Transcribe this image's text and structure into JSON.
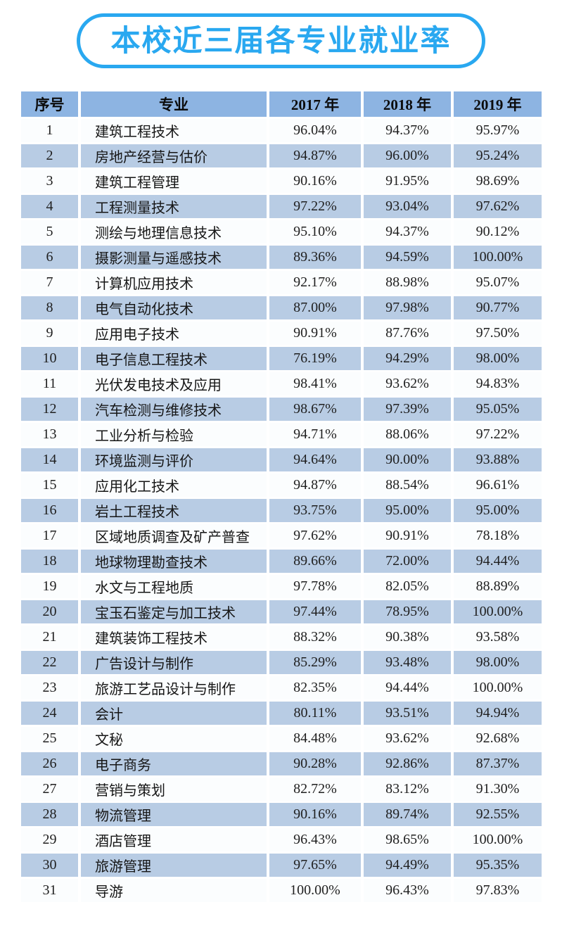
{
  "title": "本校近三届各专业就业率",
  "colors": {
    "accent": "#29A8F0",
    "header_bg": "#8DB4E2",
    "band_bg": "#B8CCE4",
    "row_bg": "#FBFDFE"
  },
  "chart_data": {
    "type": "table",
    "title": "本校近三届各专业就业率",
    "columns": [
      "序号",
      "专业",
      "2017 年",
      "2018 年",
      "2019 年"
    ],
    "rows": [
      [
        "1",
        "建筑工程技术",
        "96.04%",
        "94.37%",
        "95.97%"
      ],
      [
        "2",
        "房地产经营与估价",
        "94.87%",
        "96.00%",
        "95.24%"
      ],
      [
        "3",
        "建筑工程管理",
        "90.16%",
        "91.95%",
        "98.69%"
      ],
      [
        "4",
        "工程测量技术",
        "97.22%",
        "93.04%",
        "97.62%"
      ],
      [
        "5",
        "测绘与地理信息技术",
        "95.10%",
        "94.37%",
        "90.12%"
      ],
      [
        "6",
        "摄影测量与遥感技术",
        "89.36%",
        "94.59%",
        "100.00%"
      ],
      [
        "7",
        "计算机应用技术",
        "92.17%",
        "88.98%",
        "95.07%"
      ],
      [
        "8",
        "电气自动化技术",
        "87.00%",
        "97.98%",
        "90.77%"
      ],
      [
        "9",
        "应用电子技术",
        "90.91%",
        "87.76%",
        "97.50%"
      ],
      [
        "10",
        "电子信息工程技术",
        "76.19%",
        "94.29%",
        "98.00%"
      ],
      [
        "11",
        "光伏发电技术及应用",
        "98.41%",
        "93.62%",
        "94.83%"
      ],
      [
        "12",
        "汽车检测与维修技术",
        "98.67%",
        "97.39%",
        "95.05%"
      ],
      [
        "13",
        "工业分析与检验",
        "94.71%",
        "88.06%",
        "97.22%"
      ],
      [
        "14",
        "环境监测与评价",
        "94.64%",
        "90.00%",
        "93.88%"
      ],
      [
        "15",
        "应用化工技术",
        "94.87%",
        "88.54%",
        "96.61%"
      ],
      [
        "16",
        "岩土工程技术",
        "93.75%",
        "95.00%",
        "95.00%"
      ],
      [
        "17",
        "区域地质调查及矿产普查",
        "97.62%",
        "90.91%",
        "78.18%"
      ],
      [
        "18",
        "地球物理勘查技术",
        "89.66%",
        "72.00%",
        "94.44%"
      ],
      [
        "19",
        "水文与工程地质",
        "97.78%",
        "82.05%",
        "88.89%"
      ],
      [
        "20",
        "宝玉石鉴定与加工技术",
        "97.44%",
        "78.95%",
        "100.00%"
      ],
      [
        "21",
        "建筑装饰工程技术",
        "88.32%",
        "90.38%",
        "93.58%"
      ],
      [
        "22",
        "广告设计与制作",
        "85.29%",
        "93.48%",
        "98.00%"
      ],
      [
        "23",
        "旅游工艺品设计与制作",
        "82.35%",
        "94.44%",
        "100.00%"
      ],
      [
        "24",
        "会计",
        "80.11%",
        "93.51%",
        "94.94%"
      ],
      [
        "25",
        "文秘",
        "84.48%",
        "93.62%",
        "92.68%"
      ],
      [
        "26",
        "电子商务",
        "90.28%",
        "92.86%",
        "87.37%"
      ],
      [
        "27",
        "营销与策划",
        "82.72%",
        "83.12%",
        "91.30%"
      ],
      [
        "28",
        "物流管理",
        "90.16%",
        "89.74%",
        "92.55%"
      ],
      [
        "29",
        "酒店管理",
        "96.43%",
        "98.65%",
        "100.00%"
      ],
      [
        "30",
        "旅游管理",
        "97.65%",
        "94.49%",
        "95.35%"
      ],
      [
        "31",
        "导游",
        "100.00%",
        "96.43%",
        "97.83%"
      ]
    ]
  }
}
